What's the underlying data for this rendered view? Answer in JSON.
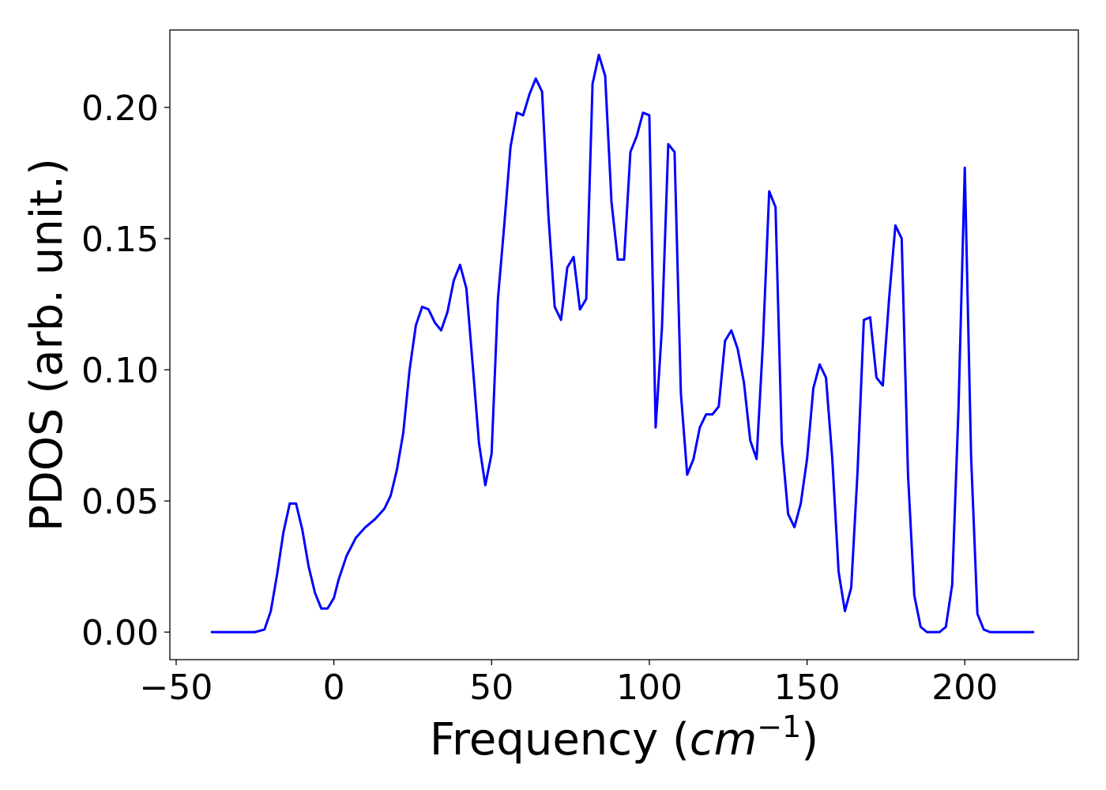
{
  "chart_data": {
    "type": "line",
    "title": "",
    "xlabel": "Frequency (",
    "xlabel_math": "cm",
    "xlabel_sup": "−1",
    "xlabel_close": ")",
    "ylabel": "PDOS (arb. unit.)",
    "xlim": [
      -52,
      236
    ],
    "ylim": [
      -0.0105,
      0.2295
    ],
    "xticks": [
      -50,
      0,
      50,
      100,
      150,
      200
    ],
    "xtick_labels": [
      "−50",
      "0",
      "50",
      "100",
      "150",
      "200"
    ],
    "yticks": [
      0.0,
      0.05,
      0.1,
      0.15,
      0.2
    ],
    "ytick_labels": [
      "0.00",
      "0.05",
      "0.10",
      "0.15",
      "0.20"
    ],
    "grid": false,
    "series": [
      {
        "color": "#0000ff",
        "x": [
          -39,
          -25,
          -22,
          -20,
          -18,
          -16,
          -14,
          -12,
          -10,
          -8,
          -6,
          -4,
          -2,
          0,
          1.5,
          4,
          7,
          10,
          13,
          16,
          18,
          20,
          22,
          24,
          26,
          28,
          30,
          32,
          34,
          36,
          38,
          40,
          42,
          44,
          46,
          48,
          50,
          52,
          54,
          56,
          58,
          60,
          62,
          64,
          66,
          68,
          70,
          72,
          74,
          76,
          78,
          80,
          82,
          84,
          86,
          88,
          90,
          92,
          94,
          96,
          98,
          100,
          102,
          104,
          106,
          108,
          110,
          112,
          114,
          116,
          118,
          120,
          122,
          124,
          126,
          128,
          130,
          132,
          134,
          136,
          138,
          140,
          142,
          144,
          146,
          148,
          150,
          152,
          154,
          156,
          158,
          160,
          162,
          164,
          166,
          168,
          170,
          172,
          174,
          176,
          178,
          180,
          182,
          184,
          186,
          188,
          190,
          192,
          194,
          196,
          198,
          200,
          202,
          204,
          206,
          208,
          210,
          222
        ],
        "y": [
          0.0,
          0.0,
          0.001,
          0.008,
          0.022,
          0.038,
          0.049,
          0.049,
          0.039,
          0.025,
          0.015,
          0.009,
          0.009,
          0.013,
          0.02,
          0.029,
          0.036,
          0.04,
          0.043,
          0.047,
          0.052,
          0.062,
          0.076,
          0.1,
          0.117,
          0.124,
          0.123,
          0.118,
          0.115,
          0.122,
          0.134,
          0.14,
          0.131,
          0.102,
          0.072,
          0.056,
          0.068,
          0.127,
          0.155,
          0.185,
          0.198,
          0.197,
          0.205,
          0.211,
          0.206,
          0.159,
          0.124,
          0.119,
          0.139,
          0.143,
          0.123,
          0.127,
          0.209,
          0.22,
          0.212,
          0.164,
          0.142,
          0.142,
          0.183,
          0.189,
          0.198,
          0.197,
          0.078,
          0.116,
          0.186,
          0.183,
          0.091,
          0.06,
          0.066,
          0.078,
          0.083,
          0.083,
          0.086,
          0.111,
          0.115,
          0.108,
          0.095,
          0.073,
          0.066,
          0.11,
          0.168,
          0.162,
          0.072,
          0.045,
          0.04,
          0.049,
          0.066,
          0.093,
          0.102,
          0.097,
          0.066,
          0.023,
          0.008,
          0.017,
          0.061,
          0.119,
          0.12,
          0.097,
          0.094,
          0.127,
          0.155,
          0.15,
          0.06,
          0.014,
          0.002,
          0.0,
          0.0,
          0.0,
          0.002,
          0.018,
          0.085,
          0.177,
          0.067,
          0.007,
          0.001,
          0.0,
          0.0,
          0.0
        ]
      }
    ]
  }
}
